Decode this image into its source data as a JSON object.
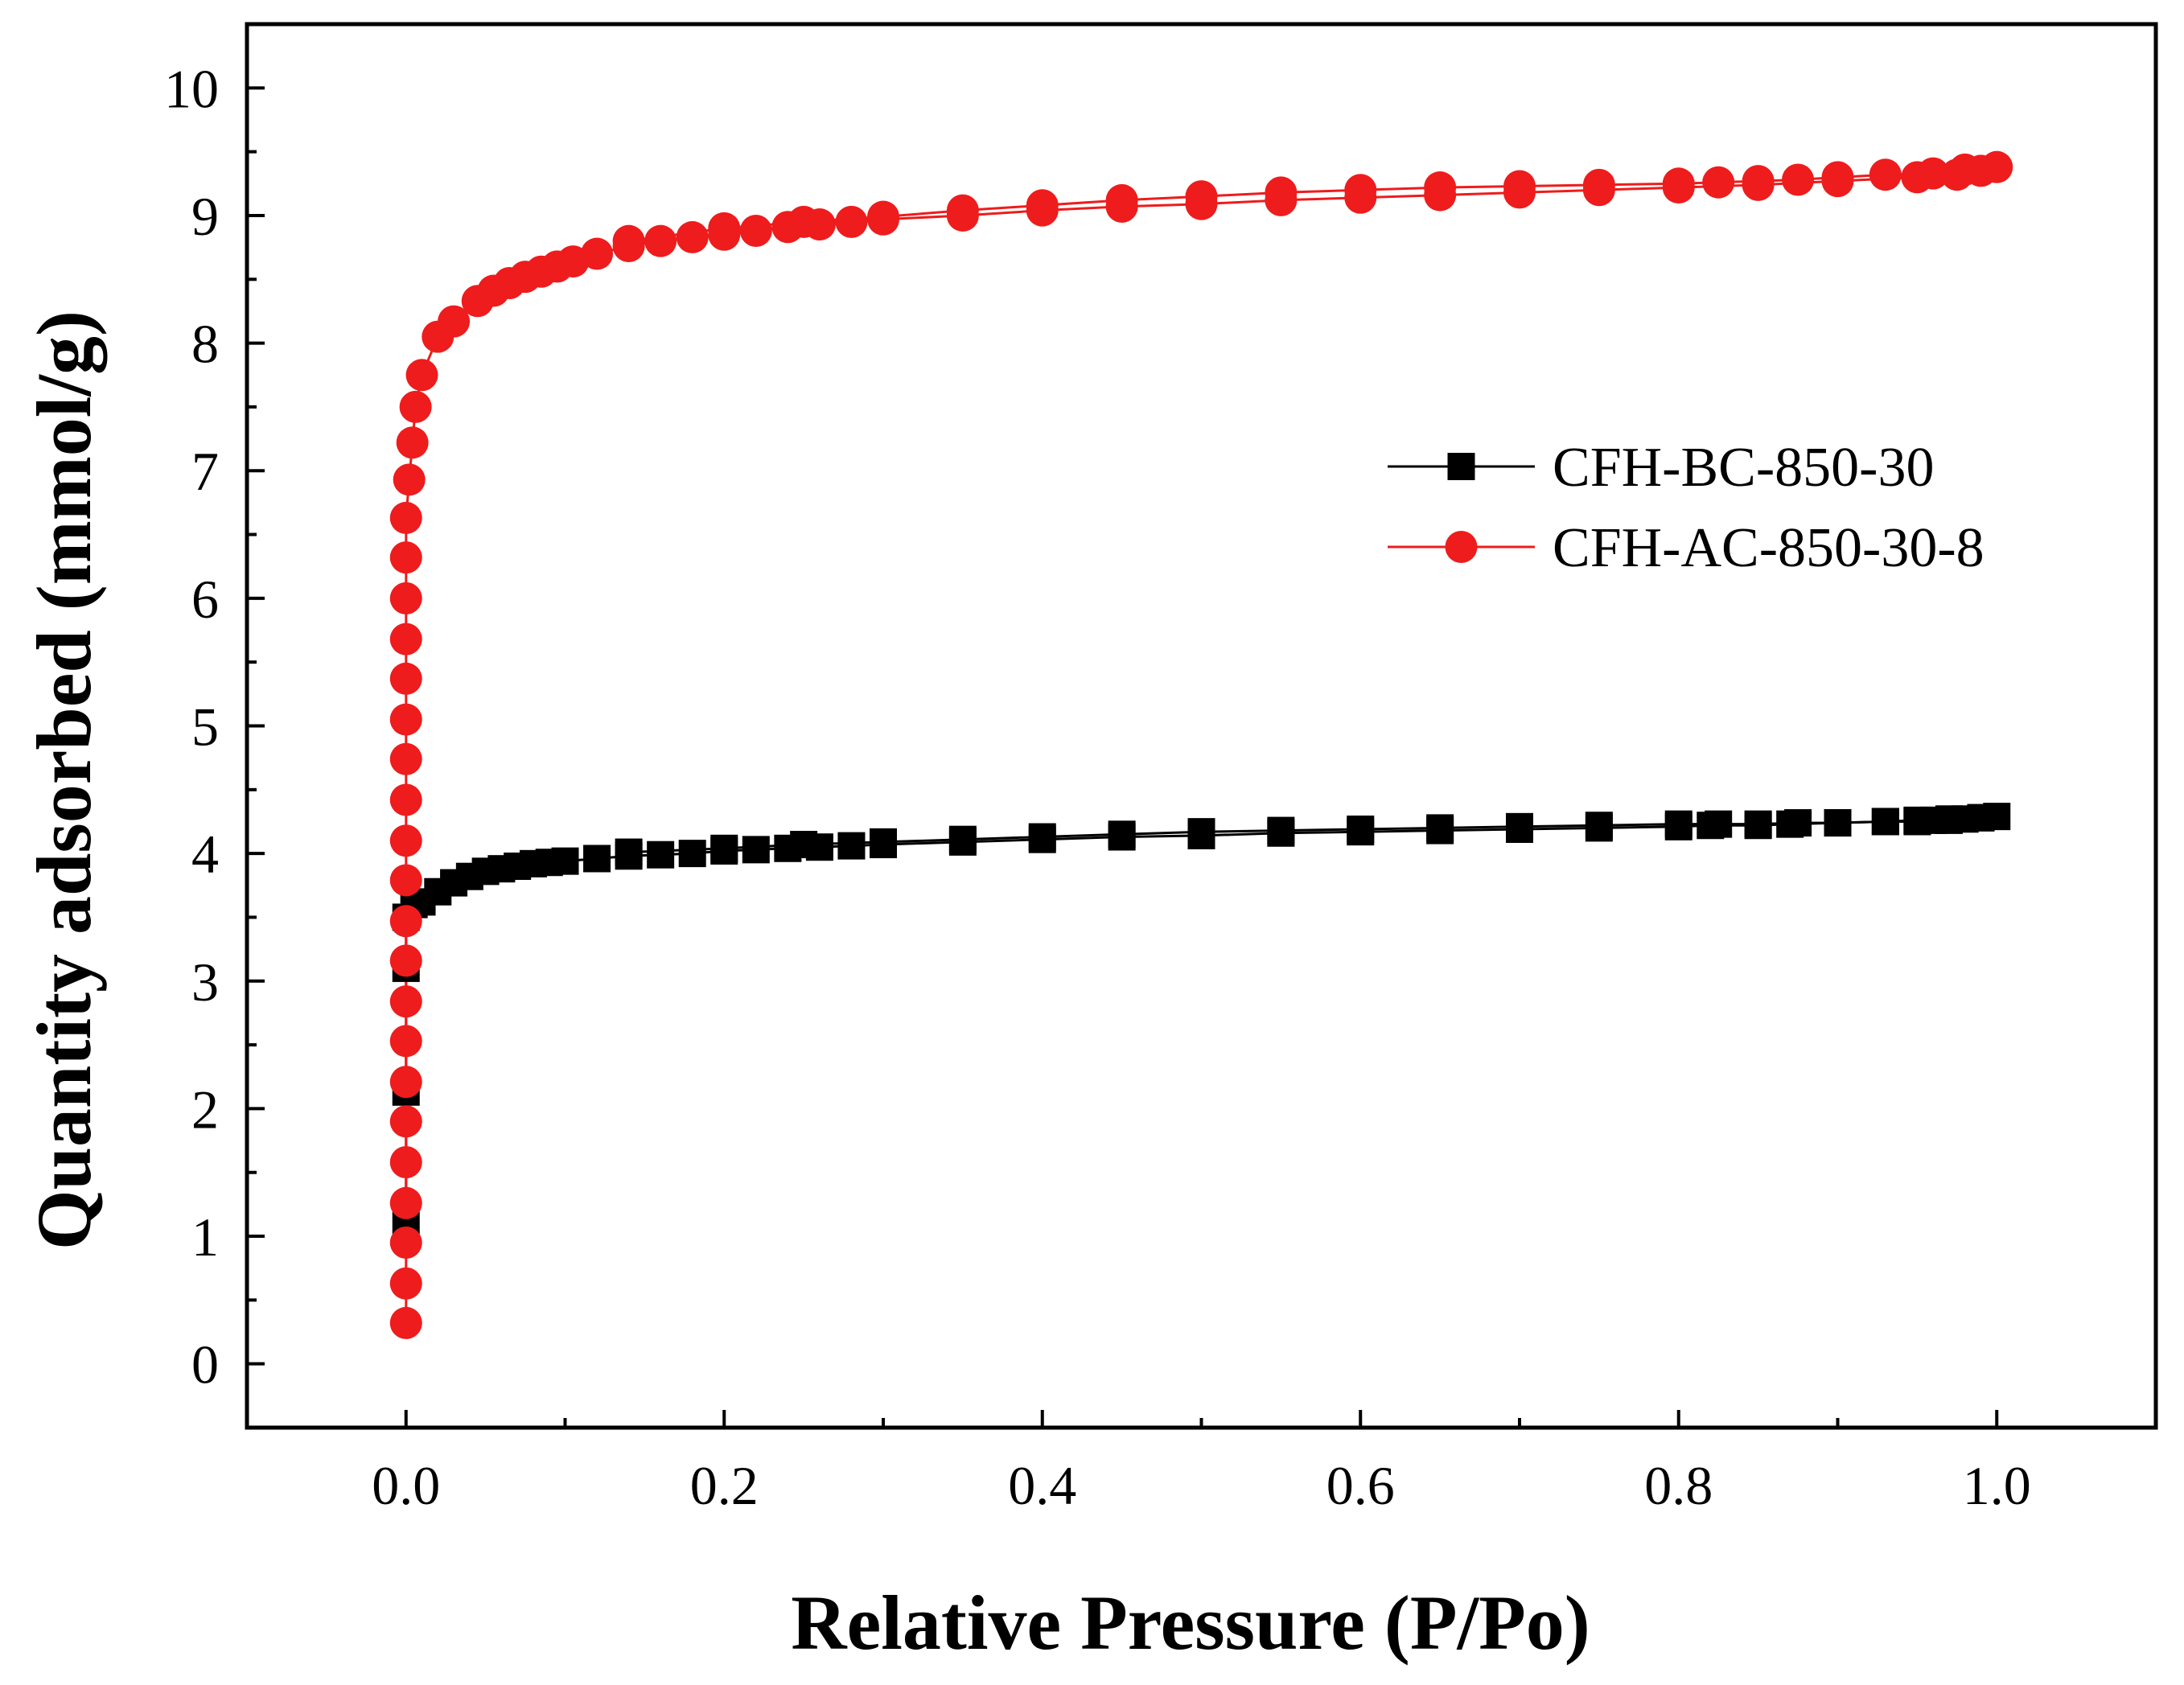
{
  "chart_data": {
    "type": "scatter",
    "title": "",
    "xlabel": "Relative Pressure (P/Po)",
    "ylabel": "Quantity adsorbed (mmol/g)",
    "xlim": [
      -0.1,
      1.1
    ],
    "ylim": [
      -0.5,
      10.5
    ],
    "xticks": [
      0.0,
      0.2,
      0.4,
      0.6,
      0.8,
      1.0
    ],
    "xtick_labels": [
      "0.0",
      "0.2",
      "0.4",
      "0.6",
      "0.8",
      "1.0"
    ],
    "yticks": [
      0,
      1,
      2,
      3,
      4,
      5,
      6,
      7,
      8,
      9,
      10
    ],
    "ytick_labels": [
      "0",
      "1",
      "2",
      "3",
      "4",
      "5",
      "6",
      "7",
      "8",
      "9",
      "10"
    ],
    "grid": false,
    "legend_position": "right",
    "series": [
      {
        "name": "CFH-BC-850-30",
        "color": "#000000",
        "marker": "square",
        "adsorption": {
          "x": [
            0.0,
            0.0,
            0.0,
            0.0,
            0.005,
            0.01,
            0.02,
            0.03,
            0.04,
            0.05,
            0.06,
            0.07,
            0.08,
            0.09,
            0.1,
            0.12,
            0.14,
            0.16,
            0.18,
            0.2,
            0.22,
            0.24,
            0.26,
            0.28,
            0.3,
            0.35,
            0.4,
            0.45,
            0.5,
            0.55,
            0.6,
            0.65,
            0.7,
            0.75,
            0.8,
            0.82,
            0.85,
            0.87,
            0.9,
            0.93,
            0.95,
            0.96,
            0.97,
            0.98,
            0.99,
            1.0
          ],
          "y": [
            1.12,
            2.13,
            3.1,
            3.5,
            3.6,
            3.62,
            3.7,
            3.77,
            3.82,
            3.86,
            3.88,
            3.9,
            3.92,
            3.93,
            3.94,
            3.96,
            3.98,
            3.99,
            4.0,
            4.02,
            4.03,
            4.04,
            4.05,
            4.06,
            4.07,
            4.09,
            4.11,
            4.13,
            4.14,
            4.16,
            4.17,
            4.18,
            4.19,
            4.2,
            4.21,
            4.22,
            4.22,
            4.23,
            4.24,
            4.25,
            4.25,
            4.26,
            4.26,
            4.27,
            4.28,
            4.29
          ]
        },
        "desorption": {
          "x": [
            0.99,
            0.97,
            0.95,
            0.93,
            0.9,
            0.875,
            0.85,
            0.825,
            0.8,
            0.75,
            0.7,
            0.65,
            0.6,
            0.55,
            0.5,
            0.45,
            0.4,
            0.35,
            0.3,
            0.25,
            0.2,
            0.14
          ],
          "y": [
            4.28,
            4.27,
            4.26,
            4.25,
            4.24,
            4.24,
            4.23,
            4.23,
            4.23,
            4.22,
            4.21,
            4.2,
            4.19,
            4.18,
            4.17,
            4.15,
            4.13,
            4.11,
            4.09,
            4.07,
            4.04,
            4.01
          ]
        }
      },
      {
        "name": "CFH-AC-850-30-8",
        "color": "#ee1c1c",
        "marker": "circle",
        "adsorption": {
          "x": [
            0.0,
            0.0,
            0.0,
            0.0,
            0.0,
            0.0,
            0.0,
            0.0,
            0.0,
            0.0,
            0.0,
            0.0,
            0.0,
            0.0,
            0.0,
            0.0,
            0.0,
            0.0,
            0.0,
            0.0,
            0.0,
            0.002,
            0.004,
            0.006,
            0.01,
            0.02,
            0.03,
            0.045,
            0.055,
            0.065,
            0.075,
            0.085,
            0.095,
            0.105,
            0.12,
            0.14,
            0.16,
            0.18,
            0.2,
            0.22,
            0.24,
            0.26,
            0.28,
            0.3,
            0.35,
            0.4,
            0.45,
            0.5,
            0.55,
            0.6,
            0.65,
            0.7,
            0.75,
            0.8,
            0.85,
            0.9,
            0.95,
            0.975,
            0.99,
            1.0
          ],
          "y": [
            0.32,
            0.63,
            0.95,
            1.26,
            1.58,
            1.9,
            2.21,
            2.53,
            2.84,
            3.16,
            3.47,
            3.79,
            4.1,
            4.42,
            4.74,
            5.05,
            5.37,
            5.68,
            6.0,
            6.32,
            6.63,
            6.93,
            7.22,
            7.5,
            7.75,
            8.05,
            8.17,
            8.33,
            8.41,
            8.47,
            8.52,
            8.56,
            8.6,
            8.64,
            8.7,
            8.76,
            8.8,
            8.83,
            8.85,
            8.88,
            8.91,
            8.93,
            8.95,
            8.97,
            9.0,
            9.04,
            9.07,
            9.09,
            9.12,
            9.14,
            9.16,
            9.18,
            9.2,
            9.22,
            9.24,
            9.27,
            9.3,
            9.32,
            9.35,
            9.38
          ]
        },
        "desorption": {
          "x": [
            0.98,
            0.96,
            0.93,
            0.9,
            0.875,
            0.85,
            0.825,
            0.8,
            0.75,
            0.7,
            0.65,
            0.6,
            0.55,
            0.5,
            0.45,
            0.4,
            0.35,
            0.3,
            0.25,
            0.2,
            0.14
          ],
          "y": [
            9.36,
            9.33,
            9.32,
            9.3,
            9.28,
            9.27,
            9.26,
            9.25,
            9.24,
            9.23,
            9.22,
            9.2,
            9.18,
            9.15,
            9.12,
            9.08,
            9.04,
            8.99,
            8.95,
            8.9,
            8.8
          ]
        }
      }
    ]
  }
}
